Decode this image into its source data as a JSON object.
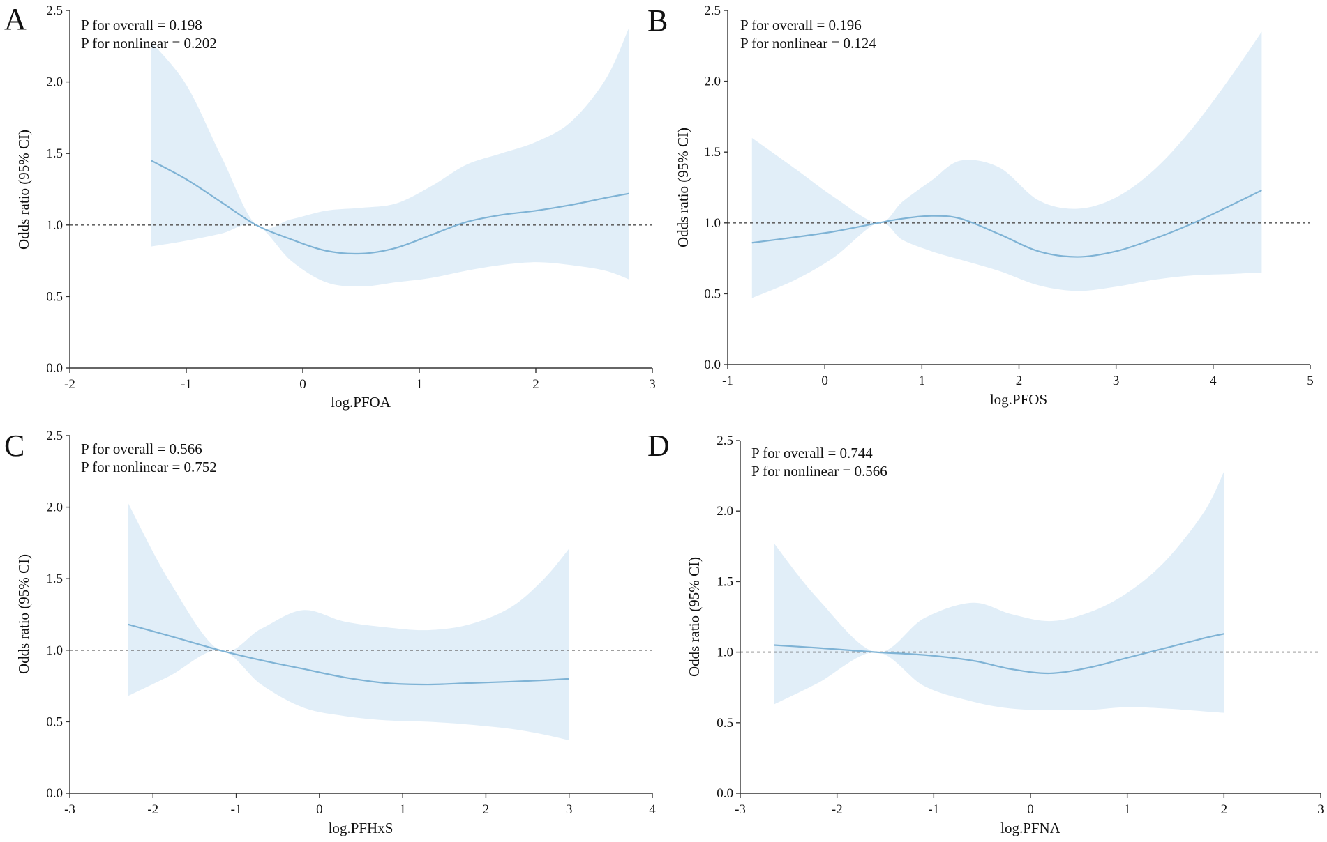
{
  "chart_data": [
    {
      "type": "line",
      "panel_label": "A",
      "xlabel": "log.PFOA",
      "ylabel": "Odds ratio (95% CI)",
      "xlim": [
        -2,
        3
      ],
      "ylim": [
        0,
        2.5
      ],
      "xticks": [
        -2,
        -1,
        0,
        1,
        2,
        3
      ],
      "yticks": [
        0.0,
        0.5,
        1.0,
        1.5,
        2.0,
        2.5
      ],
      "annotations": [
        "P for overall = 0.198",
        "P for nonlinear = 0.202"
      ],
      "reference_line": 1.0,
      "series": [
        {
          "name": "Odds ratio",
          "x": [
            -1.3,
            -1.0,
            -0.7,
            -0.4,
            -0.1,
            0.2,
            0.5,
            0.8,
            1.1,
            1.4,
            1.7,
            2.0,
            2.3,
            2.6,
            2.8
          ],
          "values": [
            1.45,
            1.32,
            1.16,
            1.0,
            0.9,
            0.82,
            0.8,
            0.84,
            0.93,
            1.02,
            1.07,
            1.1,
            1.14,
            1.19,
            1.22
          ],
          "lower": [
            0.85,
            0.89,
            0.94,
            1.0,
            0.75,
            0.6,
            0.57,
            0.6,
            0.63,
            0.68,
            0.72,
            0.74,
            0.72,
            0.68,
            0.62
          ],
          "upper": [
            2.28,
            1.98,
            1.48,
            1.0,
            1.04,
            1.1,
            1.12,
            1.15,
            1.27,
            1.42,
            1.5,
            1.58,
            1.72,
            2.02,
            2.38
          ]
        }
      ]
    },
    {
      "type": "line",
      "panel_label": "B",
      "xlabel": "log.PFOS",
      "ylabel": "Odds ratio (95% CI)",
      "xlim": [
        -1,
        5
      ],
      "ylim": [
        0,
        2.5
      ],
      "xticks": [
        -1,
        0,
        1,
        2,
        3,
        4,
        5
      ],
      "yticks": [
        0.0,
        0.5,
        1.0,
        1.5,
        2.0,
        2.5
      ],
      "annotations": [
        "P for overall = 0.196",
        "P for nonlinear = 0.124"
      ],
      "reference_line": 1.0,
      "series": [
        {
          "name": "Odds ratio",
          "x": [
            -0.75,
            -0.3,
            0.1,
            0.55,
            0.8,
            1.1,
            1.4,
            1.8,
            2.2,
            2.6,
            3.0,
            3.4,
            3.8,
            4.2,
            4.5
          ],
          "values": [
            0.86,
            0.9,
            0.94,
            1.0,
            1.03,
            1.05,
            1.03,
            0.92,
            0.8,
            0.76,
            0.8,
            0.89,
            1.0,
            1.13,
            1.23
          ],
          "lower": [
            0.47,
            0.6,
            0.76,
            1.0,
            0.88,
            0.8,
            0.74,
            0.66,
            0.56,
            0.52,
            0.55,
            0.6,
            0.63,
            0.64,
            0.65
          ],
          "upper": [
            1.6,
            1.38,
            1.18,
            1.0,
            1.15,
            1.3,
            1.44,
            1.39,
            1.16,
            1.1,
            1.18,
            1.38,
            1.68,
            2.05,
            2.35
          ]
        }
      ]
    },
    {
      "type": "line",
      "panel_label": "C",
      "xlabel": "log.PFHxS",
      "ylabel": "Odds ratio (95% CI)",
      "xlim": [
        -3,
        4
      ],
      "ylim": [
        0,
        2.5
      ],
      "xticks": [
        -3,
        -2,
        -1,
        0,
        1,
        2,
        3,
        4
      ],
      "yticks": [
        0.0,
        0.5,
        1.0,
        1.5,
        2.0,
        2.5
      ],
      "annotations": [
        "P for overall = 0.566",
        "P for nonlinear = 0.752"
      ],
      "reference_line": 1.0,
      "series": [
        {
          "name": "Odds ratio",
          "x": [
            -2.3,
            -1.8,
            -1.2,
            -0.7,
            -0.2,
            0.3,
            0.8,
            1.3,
            1.8,
            2.3,
            2.7,
            3.0
          ],
          "values": [
            1.18,
            1.1,
            1.0,
            0.93,
            0.87,
            0.81,
            0.77,
            0.76,
            0.77,
            0.78,
            0.79,
            0.8
          ],
          "lower": [
            0.68,
            0.82,
            1.0,
            0.76,
            0.6,
            0.54,
            0.51,
            0.5,
            0.48,
            0.45,
            0.41,
            0.37
          ],
          "upper": [
            2.03,
            1.48,
            1.0,
            1.15,
            1.28,
            1.2,
            1.16,
            1.14,
            1.18,
            1.3,
            1.5,
            1.71
          ]
        }
      ]
    },
    {
      "type": "line",
      "panel_label": "D",
      "xlabel": "log.PFNA",
      "ylabel": "Odds ratio (95% CI)",
      "xlim": [
        -3,
        3
      ],
      "ylim": [
        0,
        2.5
      ],
      "xticks": [
        -3,
        -2,
        -1,
        0,
        1,
        2,
        3
      ],
      "yticks": [
        0.0,
        0.5,
        1.0,
        1.5,
        2.0,
        2.5
      ],
      "annotations": [
        "P for overall = 0.744",
        "P for nonlinear = 0.566"
      ],
      "reference_line": 1.0,
      "series": [
        {
          "name": "Odds ratio",
          "x": [
            -2.65,
            -2.2,
            -1.6,
            -1.1,
            -0.6,
            -0.2,
            0.2,
            0.6,
            1.0,
            1.4,
            1.8,
            2.0
          ],
          "values": [
            1.05,
            1.03,
            1.0,
            0.98,
            0.94,
            0.88,
            0.85,
            0.89,
            0.96,
            1.03,
            1.1,
            1.13
          ],
          "lower": [
            0.63,
            0.78,
            1.0,
            0.76,
            0.65,
            0.6,
            0.59,
            0.59,
            0.61,
            0.6,
            0.58,
            0.57
          ],
          "upper": [
            1.77,
            1.38,
            1.0,
            1.24,
            1.35,
            1.27,
            1.22,
            1.28,
            1.42,
            1.65,
            2.0,
            2.28
          ]
        }
      ]
    }
  ],
  "colors": {
    "line": "#7fb3d5",
    "band": "#e1eef8",
    "axis": "#333333",
    "reference": "#666666",
    "text": "#111111"
  }
}
